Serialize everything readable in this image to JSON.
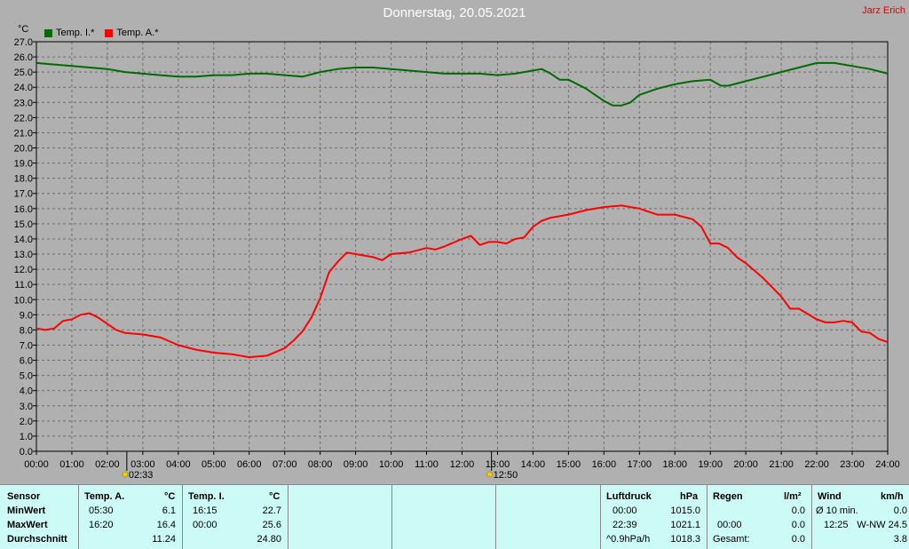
{
  "header": {
    "title": "Donnerstag, 20.05.2021",
    "author": "Jarz Erich",
    "unit": "°C"
  },
  "legend": [
    {
      "label": "Temp. I.*",
      "color": "#006b00"
    },
    {
      "label": "Temp. A.*",
      "color": "#ff0000"
    }
  ],
  "markers": [
    {
      "label": "02:33",
      "time": 2.55
    },
    {
      "label": "12:50",
      "time": 12.83
    }
  ],
  "chart_data": {
    "type": "line",
    "title": "Donnerstag, 20.05.2021",
    "ylabel": "°C",
    "ylim": [
      0,
      27
    ],
    "xlim": [
      0,
      24
    ],
    "yticks": [
      "0.0",
      "1.0",
      "2.0",
      "3.0",
      "4.0",
      "5.0",
      "6.0",
      "7.0",
      "8.0",
      "9.0",
      "10.0",
      "11.0",
      "12.0",
      "13.0",
      "14.0",
      "15.0",
      "16.0",
      "17.0",
      "18.0",
      "19.0",
      "20.0",
      "21.0",
      "22.0",
      "23.0",
      "24.0",
      "25.0",
      "26.0",
      "27.0"
    ],
    "xticks": [
      "00:00",
      "01:00",
      "02:00",
      "03:00",
      "04:00",
      "05:00",
      "06:00",
      "07:00",
      "08:00",
      "09:00",
      "10:00",
      "11:00",
      "12:00",
      "13:00",
      "14:00",
      "15:00",
      "16:00",
      "17:00",
      "18:00",
      "19:00",
      "20:00",
      "21:00",
      "22:00",
      "23:00",
      "24:00"
    ],
    "grid": true,
    "legend_position": "top-left",
    "series": [
      {
        "name": "Temp. I.*",
        "color": "#006b00",
        "x": [
          0,
          0.5,
          1,
          1.5,
          2,
          2.5,
          3,
          3.5,
          4,
          4.5,
          5,
          5.5,
          6,
          6.5,
          7,
          7.5,
          8,
          8.5,
          9,
          9.5,
          10,
          10.5,
          11,
          11.5,
          12,
          12.5,
          13,
          13.5,
          14,
          14.25,
          14.5,
          14.75,
          15,
          15.5,
          16,
          16.25,
          16.5,
          16.75,
          17,
          17.5,
          18,
          18.5,
          19,
          19.3,
          19.5,
          20,
          20.5,
          21,
          21.5,
          22,
          22.5,
          23,
          23.5,
          24
        ],
        "y": [
          25.6,
          25.5,
          25.4,
          25.3,
          25.2,
          25.0,
          24.9,
          24.8,
          24.7,
          24.7,
          24.8,
          24.8,
          24.9,
          24.9,
          24.8,
          24.7,
          25.0,
          25.2,
          25.3,
          25.3,
          25.2,
          25.1,
          25.0,
          24.9,
          24.9,
          24.9,
          24.8,
          24.9,
          25.1,
          25.2,
          24.9,
          24.5,
          24.5,
          23.9,
          23.1,
          22.8,
          22.8,
          23.0,
          23.5,
          23.9,
          24.2,
          24.4,
          24.5,
          24.1,
          24.1,
          24.4,
          24.7,
          25.0,
          25.3,
          25.6,
          25.6,
          25.4,
          25.2,
          24.9
        ]
      },
      {
        "name": "Temp. A.*",
        "color": "#ff0000",
        "x": [
          0,
          0.25,
          0.5,
          0.75,
          1,
          1.25,
          1.5,
          1.75,
          2,
          2.25,
          2.5,
          3,
          3.5,
          4,
          4.5,
          5,
          5.5,
          6,
          6.5,
          7,
          7.25,
          7.5,
          7.75,
          8,
          8.25,
          8.5,
          8.75,
          9,
          9.5,
          9.75,
          10,
          10.5,
          11,
          11.25,
          11.5,
          12,
          12.25,
          12.5,
          12.75,
          13,
          13.25,
          13.5,
          13.75,
          14,
          14.25,
          14.5,
          15,
          15.5,
          16,
          16.5,
          17,
          17.5,
          18,
          18.5,
          18.75,
          19,
          19.25,
          19.5,
          19.75,
          20,
          20.5,
          21,
          21.25,
          21.5,
          22,
          22.25,
          22.5,
          22.75,
          23,
          23.25,
          23.5,
          23.75,
          24
        ],
        "y": [
          8.1,
          8.0,
          8.1,
          8.6,
          8.7,
          9.0,
          9.1,
          8.8,
          8.4,
          8.0,
          7.8,
          7.7,
          7.5,
          7.0,
          6.7,
          6.5,
          6.4,
          6.2,
          6.3,
          6.8,
          7.3,
          7.9,
          8.8,
          10.1,
          11.8,
          12.5,
          13.1,
          13.0,
          12.8,
          12.6,
          13.0,
          13.1,
          13.4,
          13.3,
          13.5,
          14.0,
          14.2,
          13.6,
          13.8,
          13.8,
          13.7,
          14.0,
          14.1,
          14.8,
          15.2,
          15.4,
          15.6,
          15.9,
          16.1,
          16.2,
          16.0,
          15.6,
          15.6,
          15.3,
          14.8,
          13.7,
          13.7,
          13.4,
          12.8,
          12.4,
          11.4,
          10.2,
          9.4,
          9.4,
          8.7,
          8.5,
          8.5,
          8.6,
          8.5,
          7.9,
          7.8,
          7.4,
          7.2
        ]
      }
    ]
  },
  "stats": {
    "sensor": {
      "header": "Sensor",
      "min_label": "MinWert",
      "max_label": "MaxWert",
      "avg_label": "Durchschnitt"
    },
    "temp_a": {
      "header": "Temp. A.",
      "unit": "°C",
      "min_time": "05:30",
      "min_val": "6.1",
      "max_time": "16:20",
      "max_val": "16.4",
      "avg": "11.24"
    },
    "temp_i": {
      "header": "Temp. I.",
      "unit": "°C",
      "min_time": "16:15",
      "min_val": "22.7",
      "max_time": "00:00",
      "max_val": "25.6",
      "avg": "24.80"
    },
    "pressure": {
      "header": "Luftdruck",
      "unit": "hPa",
      "r1_time": "00:00",
      "r1_val": "1015.0",
      "r2_time": "22:39",
      "r2_val": "1021.1",
      "r3_label": "^0.9hPa/h",
      "r3_val": "1018.3"
    },
    "rain": {
      "header": "Regen",
      "unit": "l/m²",
      "r1_val": "0.0",
      "r2_time": "00:00",
      "r2_val": "0.0",
      "r3_label": "Gesamt:",
      "r3_val": "0.0"
    },
    "wind": {
      "header": "Wind",
      "unit": "km/h",
      "r1_label": "Ø 10 min.",
      "r1_val": "0.0",
      "r2_time": "12:25",
      "r2_val": "W-NW 24.5",
      "r3_val": "3.8"
    }
  }
}
